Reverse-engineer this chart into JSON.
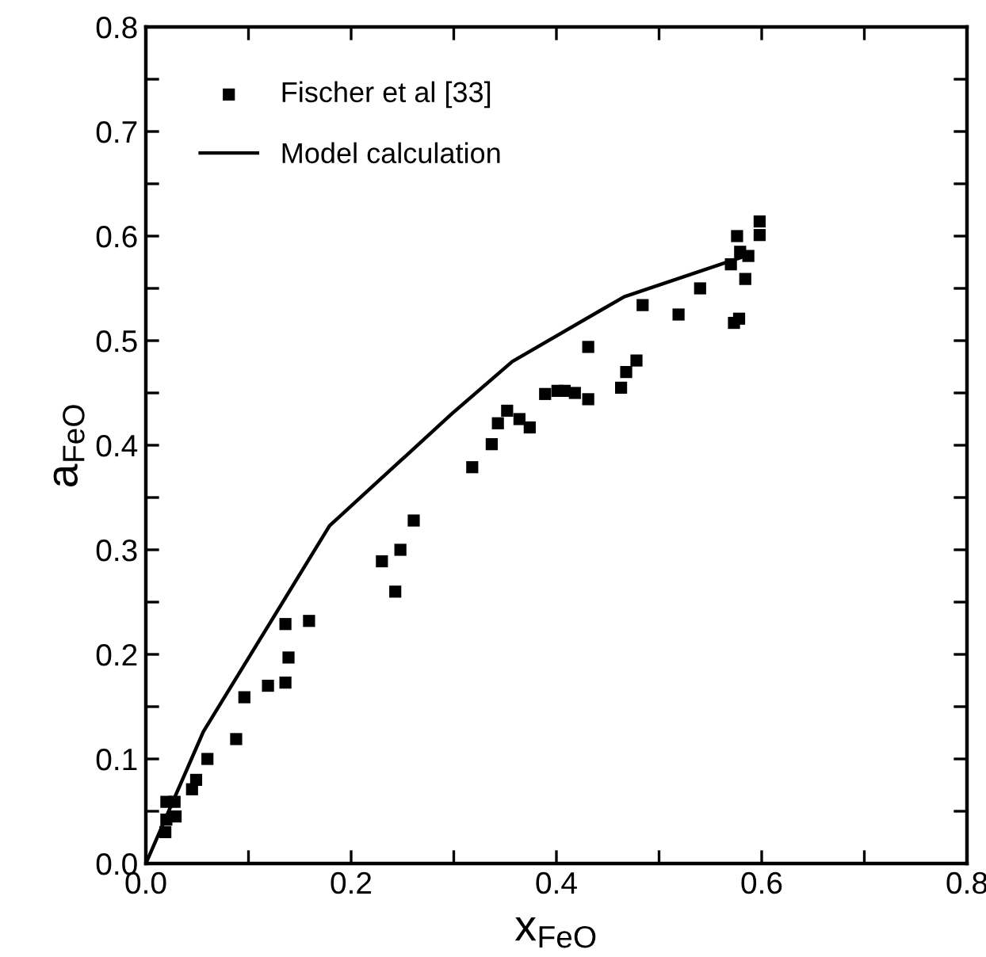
{
  "chart_data": {
    "type": "scatter",
    "xlabel": "x$_{FeO}$",
    "ylabel": "a$_{FeO}$",
    "xlim": [
      0,
      0.8
    ],
    "ylim": [
      0,
      0.8
    ],
    "xticks": [
      {
        "value": 0,
        "label": "0.0"
      },
      {
        "value": 0.1,
        "label": null
      },
      0.2,
      {
        "value": 0.3,
        "label": null
      },
      0.4,
      {
        "value": 0.5,
        "label": null
      },
      0.6,
      {
        "value": 0.7,
        "label": null
      },
      0.8
    ],
    "yticks": [
      {
        "value": 0,
        "label": "0.0"
      },
      {
        "value": 0.05,
        "label": null
      },
      0.1,
      {
        "value": 0.15,
        "label": null
      },
      0.2,
      {
        "value": 0.25,
        "label": null
      },
      0.3,
      {
        "value": 0.35,
        "label": null
      },
      0.4,
      {
        "value": 0.45,
        "label": null
      },
      0.5,
      {
        "value": 0.55,
        "label": null
      },
      0.6,
      {
        "value": 0.65,
        "label": null
      },
      0.7,
      {
        "value": 0.75,
        "label": null
      },
      0.8
    ],
    "grid": false,
    "legend": "top left",
    "series": [
      {
        "name": "Fischer et al [33]",
        "marker": "square",
        "color": "#000000",
        "x": [
          0.019,
          0.02,
          0.02,
          0.028,
          0.029,
          0.045,
          0.049,
          0.06,
          0.088,
          0.096,
          0.119,
          0.136,
          0.136,
          0.139,
          0.159,
          0.23,
          0.243,
          0.248,
          0.261,
          0.318,
          0.337,
          0.343,
          0.352,
          0.364,
          0.374,
          0.389,
          0.401,
          0.408,
          0.418,
          0.431,
          0.431,
          0.463,
          0.468,
          0.478,
          0.484,
          0.519,
          0.54,
          0.573,
          0.578,
          0.57,
          0.576,
          0.579,
          0.587,
          0.584,
          0.598,
          0.598
        ],
        "values": [
          0.03,
          0.042,
          0.059,
          0.059,
          0.045,
          0.071,
          0.08,
          0.1,
          0.119,
          0.159,
          0.17,
          0.173,
          0.229,
          0.197,
          0.232,
          0.289,
          0.26,
          0.3,
          0.328,
          0.379,
          0.401,
          0.421,
          0.433,
          0.425,
          0.417,
          0.449,
          0.452,
          0.452,
          0.45,
          0.444,
          0.494,
          0.455,
          0.47,
          0.481,
          0.534,
          0.525,
          0.55,
          0.517,
          0.521,
          0.573,
          0.6,
          0.585,
          0.581,
          0.559,
          0.601,
          0.614
        ]
      },
      {
        "name": "Model calculation",
        "type": "line",
        "marker": "none",
        "line_style": "solid",
        "color": "#000000",
        "x": [
          0.0,
          0.056,
          0.179,
          0.298,
          0.357,
          0.466,
          0.587
        ],
        "values": [
          0.0,
          0.126,
          0.323,
          0.43,
          0.48,
          0.542,
          0.582
        ]
      }
    ]
  }
}
